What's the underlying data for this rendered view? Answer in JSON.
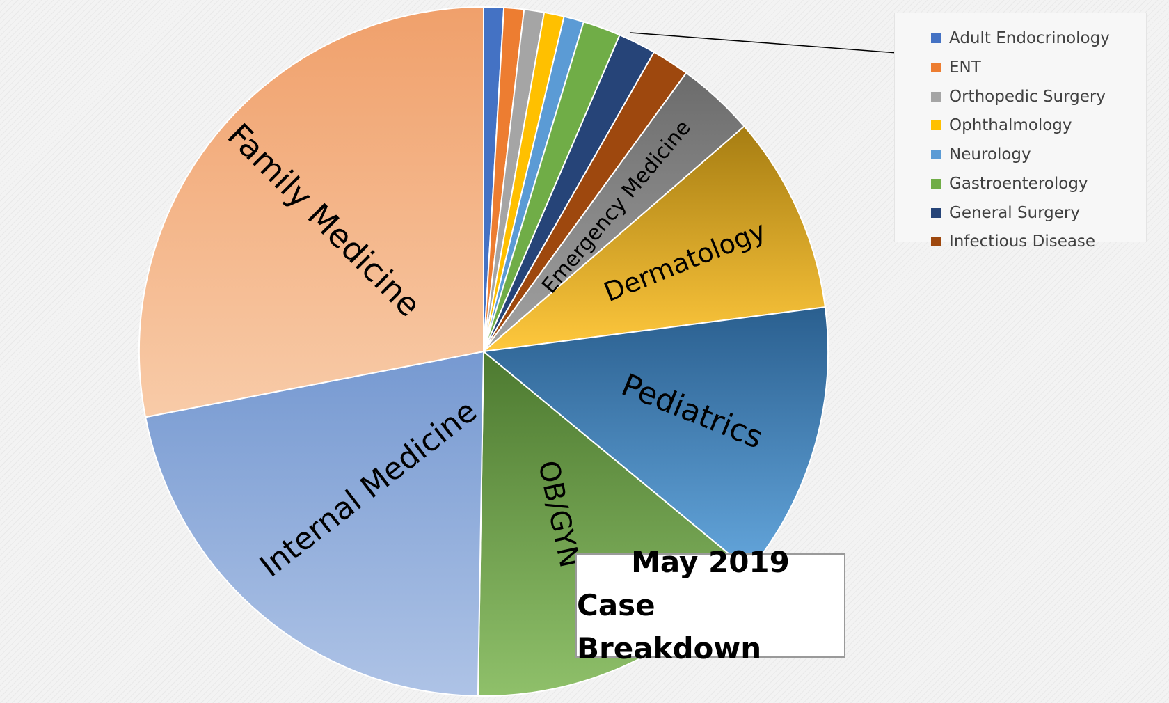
{
  "chart_data": {
    "type": "pie",
    "title_lines": [
      "May 2019",
      "Case Breakdown"
    ],
    "slices": [
      {
        "label": "Adult Endocrinology",
        "value": 0.9,
        "color": "#4472c4",
        "show_label": false
      },
      {
        "label": "ENT",
        "value": 0.9,
        "color": "#ed7d31",
        "show_label": false
      },
      {
        "label": "Orthopedic Surgery",
        "value": 0.9,
        "color": "#a5a5a5",
        "show_label": false
      },
      {
        "label": "Ophthalmology",
        "value": 0.9,
        "color": "#ffc000",
        "show_label": false
      },
      {
        "label": "Neurology",
        "value": 0.9,
        "color": "#5b9bd5",
        "show_label": false
      },
      {
        "label": "Gastroenterology",
        "value": 1.7,
        "color": "#70ad47",
        "show_label": false
      },
      {
        "label": "General Surgery",
        "value": 1.7,
        "color": "#264478",
        "show_label": false
      },
      {
        "label": "Infectious Disease",
        "value": 1.7,
        "color": "#9e480e",
        "show_label": false
      },
      {
        "label": "Emergency Medicine",
        "value": 3.5,
        "color": "#7f7f7f",
        "show_label": true
      },
      {
        "label": "Dermatology",
        "value": 8.9,
        "color": "#d4a017",
        "show_label": true
      },
      {
        "label": "Pediatrics",
        "value": 12.5,
        "color": "#3d7ab8",
        "show_label": true
      },
      {
        "label": "OB/GYN",
        "value": 13.7,
        "color": "#6a9a45",
        "show_label": true
      },
      {
        "label": "Internal Medicine",
        "value": 20.8,
        "color": "#8eaadb",
        "show_label": true
      },
      {
        "label": "Family  Medicine",
        "value": 26.9,
        "color": "#f4b183",
        "show_label": true
      }
    ],
    "legend": {
      "placement": "top-right",
      "entries": [
        "Adult Endocrinology",
        "ENT",
        "Orthopedic Surgery",
        "Ophthalmology",
        "Neurology",
        "Gastroenterology",
        "General Surgery",
        "Infectious Disease"
      ]
    }
  }
}
